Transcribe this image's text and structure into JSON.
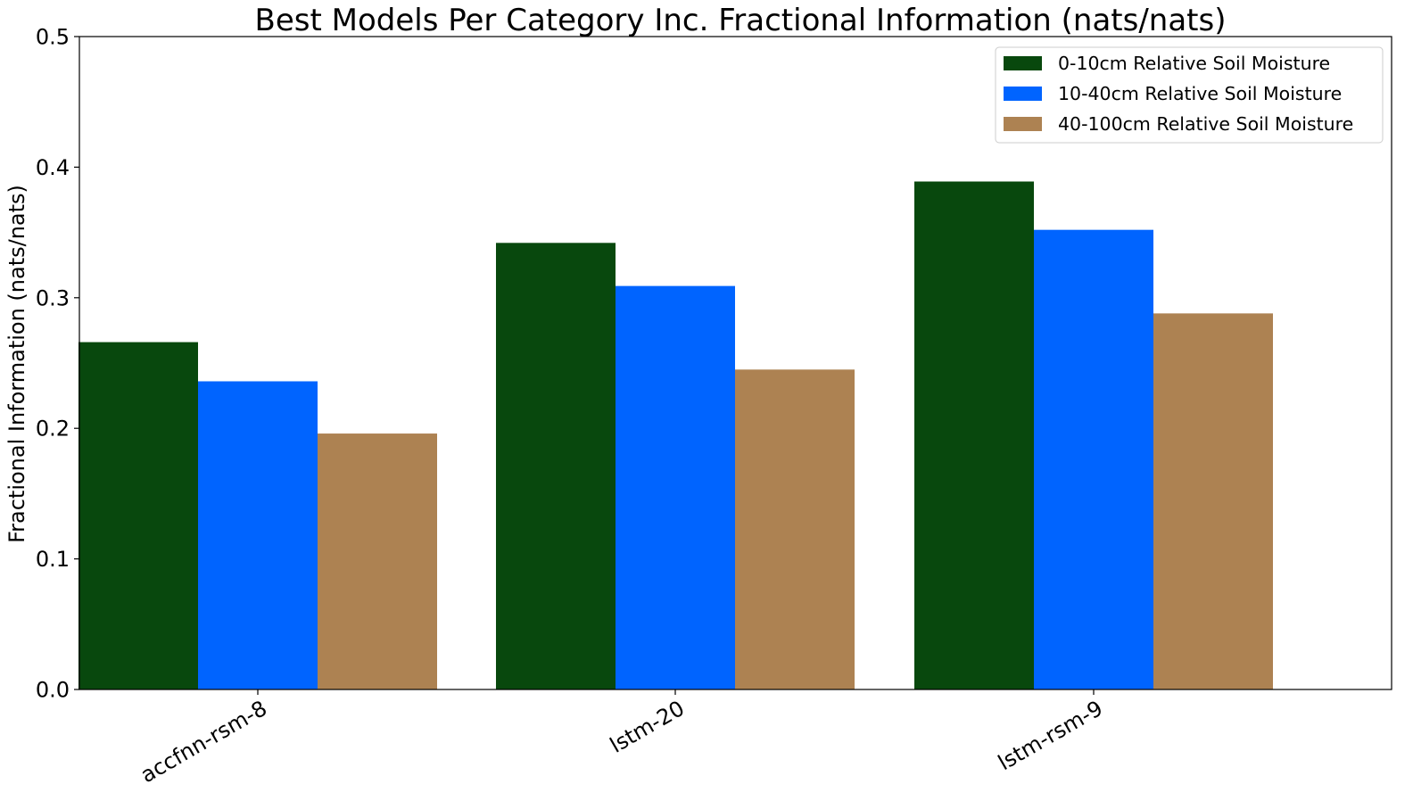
{
  "chart_data": {
    "type": "bar",
    "title": "Best Models Per Category Inc. Fractional Information (nats/nats)",
    "xlabel": "",
    "ylabel": "Fractional Information (nats/nats)",
    "ylim": [
      0,
      0.5
    ],
    "yticks": [
      "0.0",
      "0.1",
      "0.2",
      "0.3",
      "0.4",
      "0.5"
    ],
    "categories": [
      "accfnn-rsm-8",
      "lstm-20",
      "lstm-rsm-9"
    ],
    "series": [
      {
        "name": "0-10cm Relative Soil Moisture",
        "color": "#08480d",
        "values": [
          0.266,
          0.342,
          0.389
        ]
      },
      {
        "name": "10-40cm Relative Soil Moisture",
        "color": "#0064ff",
        "values": [
          0.236,
          0.309,
          0.352
        ]
      },
      {
        "name": "40-100cm Relative Soil Moisture",
        "color": "#ad8252",
        "values": [
          0.196,
          0.245,
          0.288
        ]
      }
    ],
    "legend_position": "top-right",
    "grid": false
  }
}
